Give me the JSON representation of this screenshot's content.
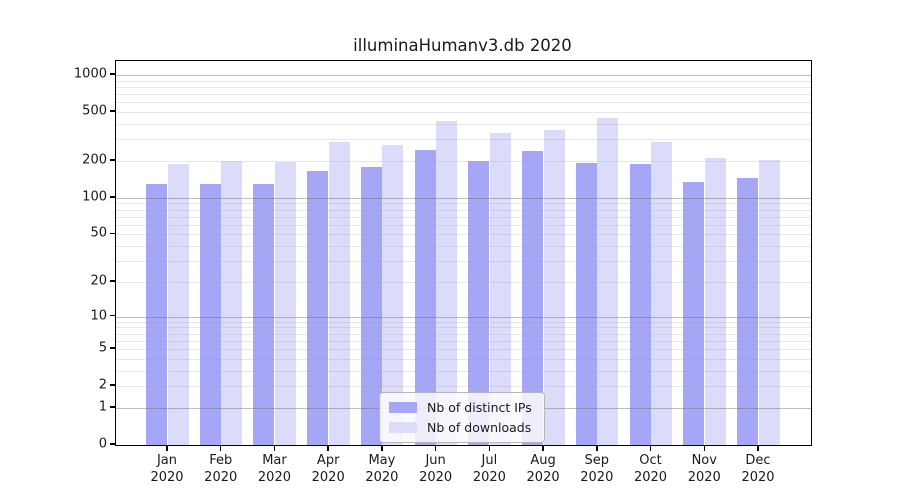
{
  "chart_data": {
    "type": "bar",
    "title": "illuminaHumanv3.db 2020",
    "categories": [
      "Jan",
      "Feb",
      "Mar",
      "Apr",
      "May",
      "Jun",
      "Jul",
      "Aug",
      "Sep",
      "Oct",
      "Nov",
      "Dec"
    ],
    "category_year": "2020",
    "series": [
      {
        "name": "Nb of distinct IPs",
        "color": "#a6a6f7",
        "values": [
          131,
          129,
          130,
          165,
          178,
          248,
          199,
          243,
          193,
          188,
          135,
          146
        ]
      },
      {
        "name": "Nb of downloads",
        "color": "#dbdbfa",
        "values": [
          190,
          199,
          196,
          285,
          270,
          423,
          336,
          355,
          450,
          287,
          212,
          202
        ]
      }
    ],
    "xlabel": "",
    "ylabel": "",
    "yscale": "log1p",
    "yticks": [
      0,
      1,
      2,
      5,
      10,
      20,
      50,
      100,
      200,
      500,
      1000
    ],
    "major_grid_values": [
      1,
      10,
      100,
      1000
    ],
    "minor_grid_values": [
      2,
      3,
      4,
      6,
      7,
      8,
      9,
      20,
      30,
      40,
      60,
      70,
      80,
      90,
      200,
      300,
      400,
      600,
      700,
      800,
      900,
      50,
      500,
      5
    ],
    "ylim": [
      0,
      1300
    ],
    "grid": true,
    "legend_position": "bottom-center",
    "colors": {
      "bar_distinct_ips": "#a6a6f7",
      "bar_downloads": "#dbdbfa",
      "axis": "#000000",
      "text": "#1a1a1a"
    }
  }
}
